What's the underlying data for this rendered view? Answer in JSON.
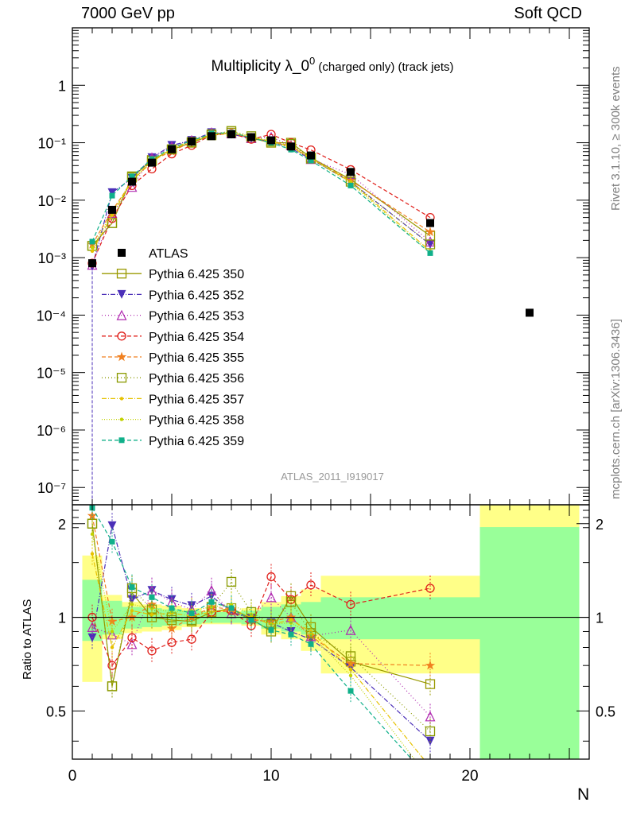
{
  "header": {
    "left": "7000 GeV pp",
    "right": "Soft QCD"
  },
  "side_labels": {
    "rivet": "Rivet 3.1.10, ≥ 300k events",
    "arxiv": "mcplots.cern.ch [arXiv:1306.3436]"
  },
  "colors": {
    "data": "#000000",
    "band_inner": "#99ff99",
    "band_outer": "#ffff88"
  },
  "chart_data": [
    {
      "type": "scatter",
      "title": "Multiplicity λ_0⁰ (charged only) (track jets)",
      "title_main": "Multiplicity λ_0",
      "title_sup": "0",
      "title_tail": " (charged only) (track jets)",
      "watermark": "ATLAS_2011_I919017",
      "ylabel": "",
      "xlabel": "N",
      "yscale": "log",
      "ylim": [
        5e-08,
        10
      ],
      "xlim": [
        0,
        26
      ],
      "ytick_labels": [
        "1",
        "10⁻¹",
        "10⁻²",
        "10⁻³",
        "10⁻⁴",
        "10⁻⁵",
        "10⁻⁶",
        "10⁻⁷"
      ],
      "legend_position": "middle-left",
      "data_series": {
        "name": "ATLAS",
        "x": [
          1,
          2,
          3,
          4,
          5,
          6,
          7,
          8,
          9,
          10,
          11,
          12,
          14,
          18,
          23
        ],
        "y": [
          0.0008,
          0.0068,
          0.021,
          0.045,
          0.077,
          0.105,
          0.13,
          0.14,
          0.125,
          0.11,
          0.086,
          0.06,
          0.031,
          0.004,
          0.00011
        ]
      },
      "series": [
        {
          "name": "Pythia 6.425 350",
          "color": "#999900",
          "marker": "square-open",
          "dash": "",
          "x": [
            1,
            2,
            3,
            4,
            5,
            6,
            7,
            8,
            9,
            10,
            11,
            12,
            14,
            18
          ],
          "y": [
            0.0016,
            0.004,
            0.025,
            0.05,
            0.076,
            0.1,
            0.135,
            0.15,
            0.12,
            0.1,
            0.1,
            0.055,
            0.023,
            0.0024
          ]
        },
        {
          "name": "Pythia 6.425 352",
          "color": "#4b2fb8",
          "marker": "triangle-down",
          "dash": "6,2,1,2",
          "x": [
            1,
            2,
            3,
            4,
            5,
            6,
            7,
            8,
            9,
            10,
            11,
            12,
            14,
            18
          ],
          "y": [
            0.0007,
            0.0135,
            0.024,
            0.055,
            0.09,
            0.11,
            0.15,
            0.14,
            0.12,
            0.105,
            0.08,
            0.052,
            0.021,
            0.0017
          ]
        },
        {
          "name": "Pythia 6.425 353",
          "color": "#b02ab0",
          "marker": "triangle-up-open",
          "dash": "1,3",
          "x": [
            1,
            2,
            3,
            4,
            5,
            6,
            7,
            8,
            9,
            10,
            11,
            12,
            14,
            18
          ],
          "y": [
            0.00075,
            0.006,
            0.017,
            0.055,
            0.085,
            0.11,
            0.15,
            0.145,
            0.12,
            0.125,
            0.09,
            0.052,
            0.028,
            0.0019
          ]
        },
        {
          "name": "Pythia 6.425 354",
          "color": "#e0201b",
          "marker": "circle-open",
          "dash": "5,3",
          "x": [
            1,
            2,
            3,
            4,
            5,
            6,
            7,
            8,
            9,
            10,
            11,
            12,
            14,
            18
          ],
          "y": [
            0.0008,
            0.0048,
            0.018,
            0.035,
            0.064,
            0.09,
            0.135,
            0.145,
            0.115,
            0.14,
            0.1,
            0.075,
            0.034,
            0.005
          ]
        },
        {
          "name": "Pythia 6.425 355",
          "color": "#f08020",
          "marker": "star",
          "dash": "5,3",
          "x": [
            1,
            2,
            3,
            4,
            5,
            6,
            7,
            8,
            9,
            10,
            11,
            12,
            14,
            18
          ],
          "y": [
            0.0017,
            0.0066,
            0.021,
            0.05,
            0.07,
            0.105,
            0.14,
            0.148,
            0.122,
            0.106,
            0.088,
            0.053,
            0.022,
            0.0028
          ]
        },
        {
          "name": "Pythia 6.425 356",
          "color": "#8a9a00",
          "marker": "square-open",
          "dash": "1,3",
          "x": [
            1,
            2,
            3,
            4,
            5,
            6,
            7,
            8,
            9,
            10,
            11,
            12,
            14,
            18
          ],
          "y": [
            0.0016,
            0.004,
            0.026,
            0.048,
            0.077,
            0.103,
            0.14,
            0.16,
            0.13,
            0.105,
            0.095,
            0.053,
            0.021,
            0.0017
          ]
        },
        {
          "name": "Pythia 6.425 357",
          "color": "#e6c200",
          "marker": "dot",
          "dash": "6,2,1,2",
          "x": [
            1,
            2,
            3,
            4,
            5,
            6,
            7,
            8,
            9,
            10,
            11,
            12,
            14,
            18
          ],
          "y": [
            0.0013,
            0.0055,
            0.022,
            0.046,
            0.079,
            0.106,
            0.135,
            0.148,
            0.125,
            0.105,
            0.085,
            0.054,
            0.021,
            0.0013
          ]
        },
        {
          "name": "Pythia 6.425 358",
          "color": "#c2d200",
          "marker": "dot",
          "dash": "1,2",
          "x": [
            1,
            2,
            3,
            4,
            5,
            6,
            7,
            8,
            9,
            10,
            11,
            12,
            14,
            18
          ],
          "y": [
            0.0015,
            0.006,
            0.023,
            0.048,
            0.08,
            0.11,
            0.14,
            0.155,
            0.128,
            0.104,
            0.083,
            0.053,
            0.02,
            0.0012
          ]
        },
        {
          "name": "Pythia 6.425 359",
          "color": "#10b08a",
          "marker": "square-filled",
          "dash": "5,3",
          "x": [
            1,
            2,
            3,
            4,
            5,
            6,
            7,
            8,
            9,
            10,
            11,
            12,
            14,
            18
          ],
          "y": [
            0.0019,
            0.012,
            0.026,
            0.052,
            0.082,
            0.108,
            0.145,
            0.15,
            0.122,
            0.1,
            0.076,
            0.049,
            0.018,
            0.0012
          ]
        }
      ]
    },
    {
      "type": "line",
      "title": "",
      "xlabel": "N",
      "ylabel": "Ratio to ATLAS",
      "ylim": [
        0.35,
        2.3
      ],
      "xlim": [
        0,
        26
      ],
      "xtick_labels": [
        "0",
        "10",
        "20"
      ],
      "ytick_labels": [
        "0.5",
        "1",
        "2"
      ],
      "reference_line": 1,
      "bands": {
        "x_edges": [
          0.5,
          1.5,
          2.5,
          3.5,
          4.5,
          5.5,
          6.5,
          7.5,
          8.5,
          9.5,
          10.5,
          11.5,
          12.5,
          15.5,
          20.5,
          25.5
        ],
        "inner_low": [
          0.84,
          0.88,
          0.92,
          0.93,
          0.94,
          0.95,
          0.96,
          0.96,
          0.95,
          0.92,
          0.9,
          0.88,
          0.85,
          0.85,
          0.0
        ],
        "inner_high": [
          1.32,
          1.13,
          1.08,
          1.07,
          1.06,
          1.05,
          1.04,
          1.04,
          1.05,
          1.08,
          1.1,
          1.12,
          1.16,
          1.16,
          1.95
        ],
        "outer_low": [
          0.62,
          0.85,
          0.89,
          0.9,
          0.91,
          0.93,
          0.95,
          0.95,
          0.94,
          0.88,
          0.85,
          0.78,
          0.66,
          0.66,
          0.0
        ],
        "outer_high": [
          1.58,
          1.18,
          1.12,
          1.1,
          1.09,
          1.07,
          1.05,
          1.05,
          1.07,
          1.12,
          1.17,
          1.23,
          1.36,
          1.36,
          2.3
        ]
      },
      "series": [
        {
          "name": "Pythia 6.425 350",
          "x": [
            1,
            2,
            3,
            4,
            5,
            6,
            7,
            8,
            9,
            10,
            11,
            12,
            14,
            18
          ],
          "y": [
            2.0,
            0.6,
            1.2,
            1.0,
            0.98,
            0.97,
            1.04,
            1.07,
            0.99,
            0.9,
            1.17,
            0.93,
            0.72,
            0.61
          ]
        },
        {
          "name": "Pythia 6.425 352",
          "x": [
            1,
            2,
            3,
            4,
            5,
            6,
            7,
            8,
            9,
            10,
            11,
            12,
            14,
            18
          ],
          "y": [
            0.86,
            1.97,
            1.14,
            1.22,
            1.14,
            1.09,
            1.17,
            1.04,
            0.99,
            0.96,
            0.9,
            0.85,
            0.69,
            0.4
          ]
        },
        {
          "name": "Pythia 6.425 353",
          "x": [
            1,
            2,
            3,
            4,
            5,
            6,
            7,
            8,
            9,
            10,
            11,
            12,
            14,
            18
          ],
          "y": [
            0.93,
            0.88,
            0.82,
            1.22,
            1.12,
            1.06,
            1.22,
            1.03,
            1.0,
            1.16,
            1.0,
            0.87,
            0.91,
            0.48
          ]
        },
        {
          "name": "Pythia 6.425 354",
          "x": [
            1,
            2,
            3,
            4,
            5,
            6,
            7,
            8,
            9,
            10,
            11,
            12,
            14,
            18
          ],
          "y": [
            1.0,
            0.7,
            0.86,
            0.78,
            0.83,
            0.85,
            1.04,
            1.05,
            0.94,
            1.35,
            1.14,
            1.27,
            1.1,
            1.24
          ]
        },
        {
          "name": "Pythia 6.425 355",
          "x": [
            1,
            2,
            3,
            4,
            5,
            6,
            7,
            8,
            9,
            10,
            11,
            12,
            14,
            18
          ],
          "y": [
            2.12,
            0.97,
            1.0,
            1.1,
            0.92,
            1.0,
            1.08,
            1.06,
            0.98,
            0.97,
            1.0,
            0.87,
            0.71,
            0.7
          ]
        },
        {
          "name": "Pythia 6.425 356",
          "x": [
            1,
            2,
            3,
            4,
            5,
            6,
            7,
            8,
            9,
            10,
            11,
            12,
            14,
            18
          ],
          "y": [
            2.0,
            0.6,
            1.24,
            1.06,
            1.0,
            0.98,
            1.08,
            1.3,
            1.04,
            0.95,
            1.12,
            0.89,
            0.75,
            0.43
          ]
        },
        {
          "name": "Pythia 6.425 357",
          "x": [
            1,
            2,
            3,
            4,
            5,
            6,
            7,
            8,
            9,
            10,
            11,
            12,
            14,
            18
          ],
          "y": [
            1.6,
            0.8,
            1.05,
            1.02,
            1.03,
            1.01,
            1.04,
            1.06,
            1.0,
            0.95,
            0.98,
            0.9,
            0.68,
            0.33
          ]
        },
        {
          "name": "Pythia 6.425 358",
          "x": [
            1,
            2,
            3,
            4,
            5,
            6,
            7,
            8,
            9,
            10,
            11,
            12,
            14,
            18
          ],
          "y": [
            1.85,
            0.9,
            1.1,
            1.07,
            1.04,
            1.05,
            1.08,
            1.1,
            1.02,
            0.95,
            0.96,
            0.88,
            0.65,
            0.3
          ]
        },
        {
          "name": "Pythia 6.425 359",
          "x": [
            1,
            2,
            3,
            4,
            5,
            6,
            7,
            8,
            9,
            10,
            11,
            12,
            14,
            18
          ],
          "y": [
            2.25,
            1.75,
            1.25,
            1.16,
            1.07,
            1.03,
            1.12,
            1.07,
            0.98,
            0.91,
            0.88,
            0.82,
            0.58,
            0.3
          ]
        }
      ]
    }
  ]
}
